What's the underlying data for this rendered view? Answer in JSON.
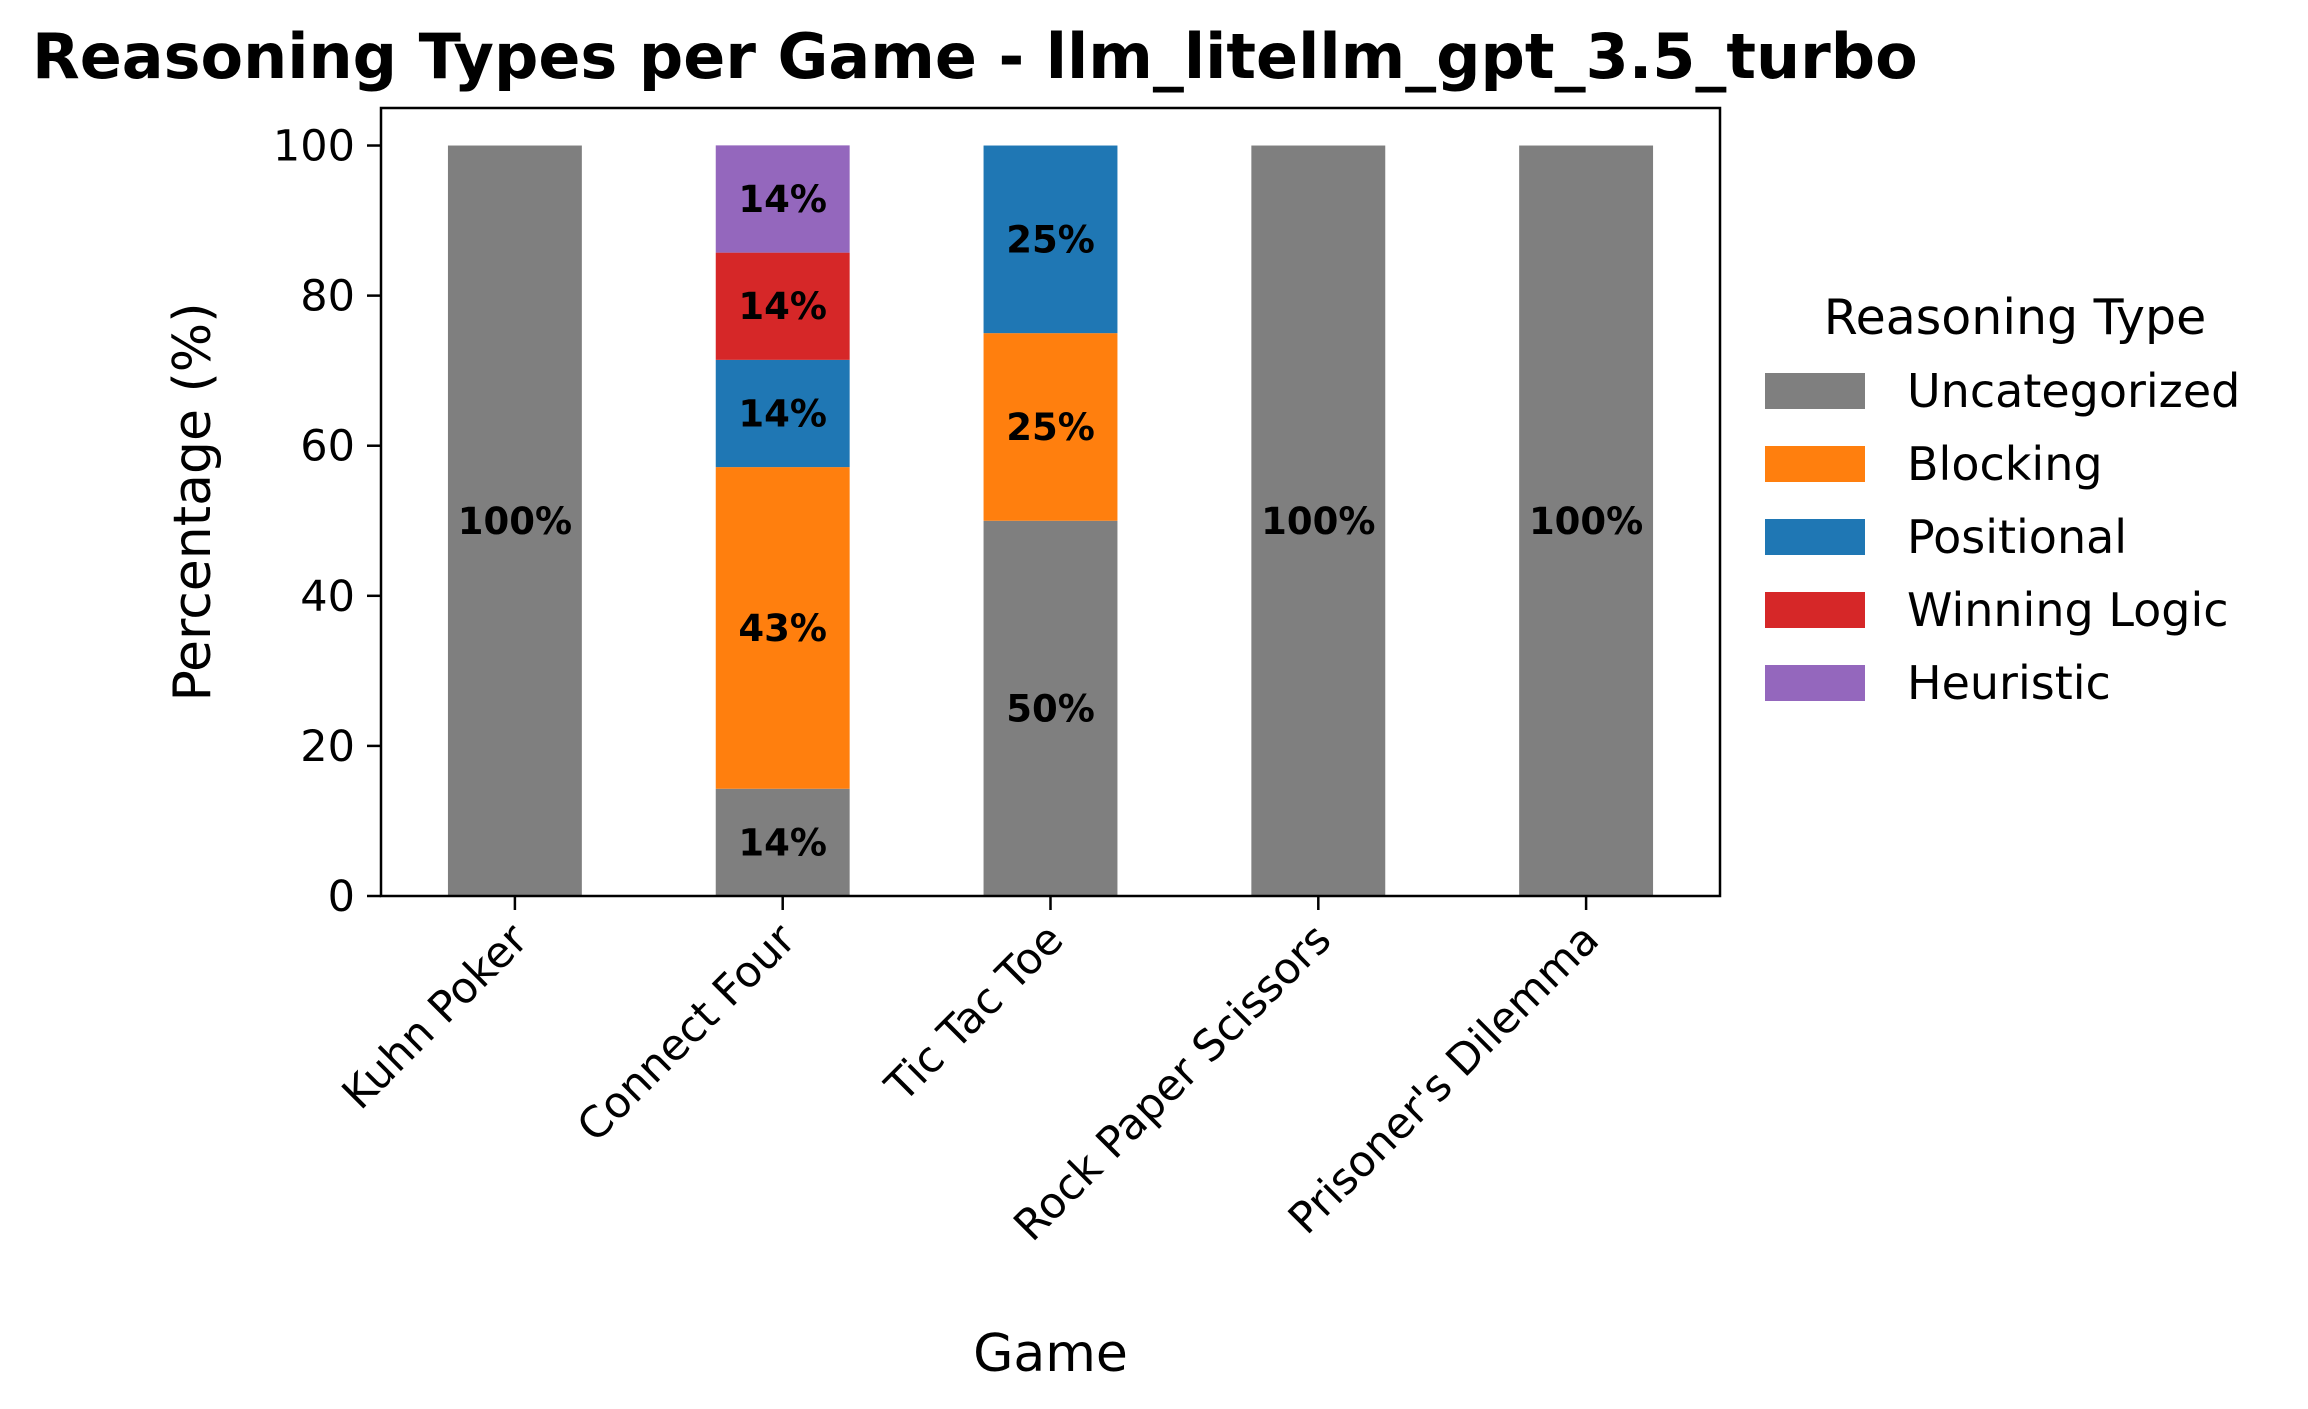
{
  "chart_data": {
    "type": "bar",
    "stacked": true,
    "title": "Reasoning Types per Game - llm_litellm_gpt_3.5_turbo",
    "xlabel": "Game",
    "ylabel": "Percentage (%)",
    "ylim": [
      0,
      105
    ],
    "yticks": [
      "0",
      "20",
      "40",
      "60",
      "80",
      "100"
    ],
    "grid": false,
    "legend_position": "right",
    "legend_title": "Reasoning Type",
    "categories": [
      "Kuhn Poker",
      "Connect Four",
      "Tic Tac Toe",
      "Rock Paper Scissors",
      "Prisoner's Dilemma"
    ],
    "series": [
      {
        "name": "Uncategorized",
        "color": "#7f7f7f",
        "values": [
          100,
          14.29,
          50,
          100,
          100
        ],
        "labels": [
          "100%",
          "14%",
          "50%",
          "100%",
          "100%"
        ]
      },
      {
        "name": "Blocking",
        "color": "#ff7f0e",
        "values": [
          0,
          42.86,
          25,
          0,
          0
        ],
        "labels": [
          "",
          "43%",
          "25%",
          "",
          ""
        ]
      },
      {
        "name": "Positional",
        "color": "#1f77b4",
        "values": [
          0,
          14.29,
          25,
          0,
          0
        ],
        "labels": [
          "",
          "14%",
          "25%",
          "",
          ""
        ]
      },
      {
        "name": "Winning Logic",
        "color": "#d62728",
        "values": [
          0,
          14.29,
          0,
          0,
          0
        ],
        "labels": [
          "",
          "14%",
          "",
          "",
          ""
        ]
      },
      {
        "name": "Heuristic",
        "color": "#9467bd",
        "values": [
          0,
          14.29,
          0,
          0,
          0
        ],
        "labels": [
          "",
          "14%",
          "",
          "",
          ""
        ]
      }
    ]
  }
}
